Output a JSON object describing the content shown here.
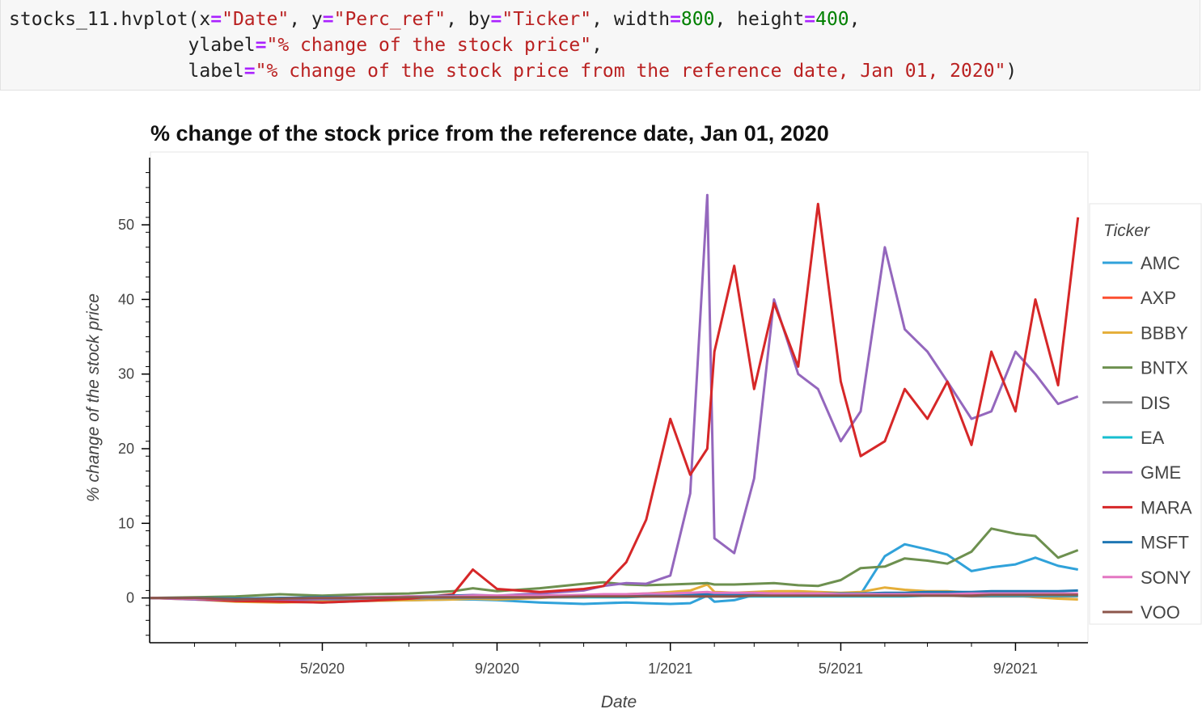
{
  "code_cell": {
    "line1": {
      "a": "stocks_11.hvplot(x",
      "op1": "=",
      "s1": "\"Date\"",
      "b": ", y",
      "op2": "=",
      "s2": "\"Perc_ref\"",
      "c": ", by",
      "op3": "=",
      "s3": "\"Ticker\"",
      "d": ", width",
      "op4": "=",
      "n1": "800",
      "e": ", height",
      "op5": "=",
      "n2": "400",
      "f": ","
    },
    "line2": {
      "a": "                ylabel",
      "op": "=",
      "s": "\"% change of the stock price\"",
      "b": ","
    },
    "line3": {
      "a": "                label",
      "op": "=",
      "s": "\"% change of the stock price from the reference date, Jan 01, 2020\"",
      "b": ")"
    }
  },
  "colors": {
    "AMC": "#30a2da",
    "AXP": "#fc4f30",
    "BBBY": "#e5ae38",
    "BNTX": "#6d904f",
    "DIS": "#8b8b8b",
    "EA": "#17becf",
    "GME": "#9467bd",
    "MARA": "#d62728",
    "MSFT": "#1f77b4",
    "SONY": "#e377c2",
    "VOO": "#8c564b"
  },
  "chart_data": {
    "type": "line",
    "title": "% change of the stock price from the reference date, Jan 01, 2020",
    "xlabel": "Date",
    "ylabel": "% change of the stock price",
    "x_ticks": [
      "5/2020",
      "9/2020",
      "1/2021",
      "5/2021",
      "9/2021"
    ],
    "y_ticks": [
      0,
      10,
      20,
      30,
      40,
      50
    ],
    "xlim": [
      "2020-01-01",
      "2021-10-22"
    ],
    "ylim": [
      -6,
      59
    ],
    "legend_title": "Ticker",
    "legend_position": "right",
    "x": [
      "2020-01-01",
      "2020-02-01",
      "2020-03-01",
      "2020-04-01",
      "2020-05-01",
      "2020-06-01",
      "2020-07-01",
      "2020-08-01",
      "2020-08-15",
      "2020-09-01",
      "2020-10-01",
      "2020-11-01",
      "2020-11-15",
      "2020-12-01",
      "2020-12-15",
      "2021-01-01",
      "2021-01-15",
      "2021-01-27",
      "2021-02-01",
      "2021-02-15",
      "2021-03-01",
      "2021-03-15",
      "2021-04-01",
      "2021-04-15",
      "2021-05-01",
      "2021-05-15",
      "2021-06-01",
      "2021-06-15",
      "2021-07-01",
      "2021-07-15",
      "2021-08-01",
      "2021-08-15",
      "2021-09-01",
      "2021-09-15",
      "2021-10-01",
      "2021-10-15"
    ],
    "series": [
      {
        "name": "AMC",
        "values": [
          0,
          -0.1,
          -0.3,
          -0.5,
          -0.6,
          -0.4,
          -0.3,
          -0.2,
          -0.2,
          -0.3,
          -0.6,
          -0.8,
          -0.7,
          -0.6,
          -0.7,
          -0.8,
          -0.7,
          0.3,
          -0.5,
          -0.3,
          0.4,
          0.5,
          0.5,
          0.4,
          0.3,
          0.5,
          5.6,
          7.2,
          6.5,
          5.8,
          3.6,
          4.1,
          4.5,
          5.4,
          4.3,
          3.8
        ]
      },
      {
        "name": "AXP",
        "values": [
          0,
          -0.1,
          -0.2,
          -0.3,
          -0.2,
          -0.1,
          -0.1,
          0,
          0,
          0,
          0.1,
          0.1,
          0.2,
          0.2,
          0.2,
          0.3,
          0.3,
          0.3,
          0.3,
          0.4,
          0.4,
          0.4,
          0.5,
          0.5,
          0.5,
          0.5,
          0.5,
          0.5,
          0.5,
          0.5,
          0.5,
          0.5,
          0.5,
          0.5,
          0.5,
          0.5
        ]
      },
      {
        "name": "BBBY",
        "values": [
          0,
          -0.2,
          -0.5,
          -0.6,
          -0.5,
          -0.4,
          -0.3,
          -0.2,
          -0.1,
          -0.2,
          0,
          0.3,
          0.4,
          0.5,
          0.6,
          0.8,
          1.0,
          1.8,
          0.8,
          0.7,
          0.8,
          0.9,
          0.9,
          0.8,
          0.7,
          0.8,
          1.4,
          1.1,
          0.9,
          0.9,
          0.7,
          0.5,
          0.3,
          0.1,
          -0.1,
          -0.2
        ]
      },
      {
        "name": "BNTX",
        "values": [
          0,
          0.1,
          0.2,
          0.5,
          0.3,
          0.5,
          0.6,
          0.9,
          1.3,
          0.9,
          1.3,
          1.9,
          2.1,
          1.8,
          1.7,
          1.8,
          1.9,
          2.0,
          1.8,
          1.8,
          1.9,
          2.0,
          1.7,
          1.6,
          2.4,
          4.0,
          4.2,
          5.3,
          5.0,
          4.6,
          6.2,
          9.3,
          8.6,
          8.3,
          5.4,
          6.4
        ]
      },
      {
        "name": "DIS",
        "values": [
          0,
          -0.1,
          -0.2,
          -0.3,
          -0.2,
          -0.2,
          -0.1,
          0,
          0,
          0,
          0.1,
          0.2,
          0.3,
          0.4,
          0.4,
          0.4,
          0.4,
          0.4,
          0.4,
          0.4,
          0.4,
          0.4,
          0.4,
          0.3,
          0.3,
          0.3,
          0.3,
          0.3,
          0.3,
          0.3,
          0.2,
          0.2,
          0.2,
          0.2,
          0.2,
          0.2
        ]
      },
      {
        "name": "EA",
        "values": [
          0,
          0,
          -0.1,
          0,
          0,
          0,
          0.1,
          0.1,
          0.1,
          0.1,
          0.1,
          0.1,
          0.1,
          0.1,
          0.2,
          0.2,
          0.2,
          0.2,
          0.2,
          0.2,
          0.2,
          0.2,
          0.2,
          0.2,
          0.2,
          0.2,
          0.2,
          0.2,
          0.3,
          0.3,
          0.3,
          0.3,
          0.3,
          0.3,
          0.3,
          0.3
        ]
      },
      {
        "name": "GME",
        "values": [
          0,
          -0.2,
          -0.4,
          -0.3,
          -0.1,
          0,
          0.1,
          0.3,
          0.4,
          0.3,
          0.6,
          1.0,
          1.6,
          2.0,
          1.9,
          3.0,
          14.0,
          54.0,
          8.0,
          6.0,
          16.0,
          40.0,
          30.0,
          28.0,
          21.0,
          25.0,
          47.0,
          36.0,
          33.0,
          29.0,
          24.0,
          25.0,
          33.0,
          30.0,
          26.0,
          27.0
        ]
      },
      {
        "name": "MARA",
        "values": [
          0,
          -0.1,
          -0.4,
          -0.5,
          -0.6,
          -0.4,
          -0.1,
          0.5,
          3.8,
          1.2,
          0.8,
          1.2,
          1.6,
          4.8,
          10.5,
          24.0,
          16.5,
          20.0,
          33.0,
          44.5,
          28.0,
          39.5,
          31.0,
          52.8,
          29.0,
          19.0,
          21.0,
          28.0,
          24.0,
          29.0,
          20.5,
          33.0,
          25.0,
          40.0,
          28.5,
          51.0
        ]
      },
      {
        "name": "MSFT",
        "values": [
          0,
          0,
          -0.1,
          0,
          0.1,
          0.1,
          0.2,
          0.3,
          0.3,
          0.2,
          0.3,
          0.3,
          0.3,
          0.4,
          0.4,
          0.4,
          0.4,
          0.5,
          0.5,
          0.5,
          0.5,
          0.5,
          0.6,
          0.6,
          0.6,
          0.6,
          0.7,
          0.7,
          0.8,
          0.8,
          0.8,
          0.9,
          0.9,
          0.9,
          0.9,
          1.0
        ]
      },
      {
        "name": "SONY",
        "values": [
          0,
          -0.1,
          -0.2,
          -0.1,
          0,
          0.1,
          0.2,
          0.2,
          0.3,
          0.3,
          0.3,
          0.4,
          0.5,
          0.5,
          0.6,
          0.6,
          0.7,
          0.8,
          0.7,
          0.7,
          0.7,
          0.6,
          0.6,
          0.6,
          0.5,
          0.5,
          0.5,
          0.5,
          0.5,
          0.5,
          0.6,
          0.6,
          0.6,
          0.6,
          0.6,
          0.6
        ]
      },
      {
        "name": "VOO",
        "values": [
          0,
          0,
          -0.2,
          -0.1,
          0,
          0,
          0.1,
          0.1,
          0.1,
          0.1,
          0.1,
          0.2,
          0.2,
          0.2,
          0.2,
          0.2,
          0.2,
          0.2,
          0.2,
          0.2,
          0.3,
          0.3,
          0.3,
          0.3,
          0.3,
          0.3,
          0.3,
          0.3,
          0.3,
          0.3,
          0.3,
          0.4,
          0.4,
          0.4,
          0.4,
          0.4
        ]
      }
    ]
  }
}
